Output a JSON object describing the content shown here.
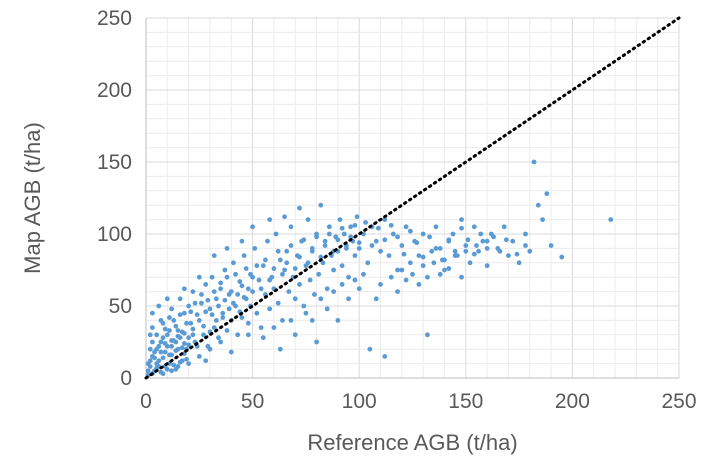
{
  "chart_data": {
    "type": "scatter",
    "title": "",
    "xlabel": "Reference AGB (t/ha)",
    "ylabel": "Map AGB (t/ha)",
    "xlim": [
      0,
      250
    ],
    "ylim": [
      0,
      250
    ],
    "x_ticks": [
      0,
      50,
      100,
      150,
      200,
      250
    ],
    "y_ticks": [
      0,
      50,
      100,
      150,
      200,
      250
    ],
    "x_tick_labels": [
      "0",
      "50",
      "100",
      "150",
      "200",
      "250"
    ],
    "y_tick_labels": [
      "0",
      "50",
      "100",
      "150",
      "200",
      "250"
    ],
    "grid": true,
    "legend": "none",
    "colors": {
      "points": "#5b9bd5",
      "reference_line": "#000000",
      "grid": "#d9d9d9",
      "text": "#595959"
    },
    "reference_line": {
      "style": "dotted",
      "from": [
        0,
        0
      ],
      "to": [
        250,
        250
      ]
    },
    "series": [
      {
        "points": [
          [
            1,
            2
          ],
          [
            2,
            8
          ],
          [
            3,
            15
          ],
          [
            4,
            5
          ],
          [
            5,
            20
          ],
          [
            6,
            12
          ],
          [
            7,
            25
          ],
          [
            8,
            3
          ],
          [
            9,
            18
          ],
          [
            10,
            30
          ],
          [
            11,
            10
          ],
          [
            12,
            22
          ],
          [
            13,
            40
          ],
          [
            14,
            6
          ],
          [
            15,
            33
          ],
          [
            16,
            28
          ],
          [
            17,
            12
          ],
          [
            18,
            45
          ],
          [
            19,
            20
          ],
          [
            20,
            50
          ],
          [
            2,
            30
          ],
          [
            3,
            35
          ],
          [
            5,
            10
          ],
          [
            7,
            40
          ],
          [
            9,
            8
          ],
          [
            11,
            33
          ],
          [
            12,
            48
          ],
          [
            14,
            25
          ],
          [
            16,
            55
          ],
          [
            18,
            17
          ],
          [
            21,
            38
          ],
          [
            22,
            60
          ],
          [
            23,
            25
          ],
          [
            24,
            44
          ],
          [
            25,
            15
          ],
          [
            26,
            52
          ],
          [
            27,
            30
          ],
          [
            28,
            65
          ],
          [
            29,
            22
          ],
          [
            30,
            48
          ],
          [
            31,
            70
          ],
          [
            32,
            35
          ],
          [
            33,
            55
          ],
          [
            34,
            28
          ],
          [
            35,
            62
          ],
          [
            36,
            45
          ],
          [
            37,
            75
          ],
          [
            38,
            33
          ],
          [
            39,
            58
          ],
          [
            40,
            40
          ],
          [
            41,
            80
          ],
          [
            42,
            50
          ],
          [
            43,
            30
          ],
          [
            44,
            67
          ],
          [
            45,
            42
          ],
          [
            46,
            85
          ],
          [
            47,
            55
          ],
          [
            48,
            38
          ],
          [
            49,
            72
          ],
          [
            50,
            60
          ],
          [
            51,
            90
          ],
          [
            52,
            45
          ],
          [
            53,
            68
          ],
          [
            54,
            35
          ],
          [
            55,
            78
          ],
          [
            56,
            58
          ],
          [
            57,
            95
          ],
          [
            58,
            48
          ],
          [
            59,
            70
          ],
          [
            60,
            62
          ],
          [
            61,
            100
          ],
          [
            62,
            52
          ],
          [
            63,
            82
          ],
          [
            64,
            40
          ],
          [
            65,
            75
          ],
          [
            66,
            88
          ],
          [
            67,
            60
          ],
          [
            68,
            105
          ],
          [
            69,
            70
          ],
          [
            70,
            55
          ],
          [
            71,
            85
          ],
          [
            72,
            65
          ],
          [
            73,
            95
          ],
          [
            74,
            50
          ],
          [
            75,
            78
          ],
          [
            76,
            110
          ],
          [
            77,
            68
          ],
          [
            78,
            90
          ],
          [
            79,
            58
          ],
          [
            80,
            100
          ],
          [
            81,
            72
          ],
          [
            82,
            120
          ],
          [
            83,
            80
          ],
          [
            84,
            95
          ],
          [
            85,
            62
          ],
          [
            86,
            105
          ],
          [
            87,
            85
          ],
          [
            88,
            75
          ],
          [
            89,
            98
          ],
          [
            90,
            88
          ],
          [
            91,
            110
          ],
          [
            92,
            78
          ],
          [
            93,
            100
          ],
          [
            94,
            92
          ],
          [
            95,
            70
          ],
          [
            96,
            105
          ],
          [
            97,
            95
          ],
          [
            98,
            85
          ],
          [
            99,
            112
          ],
          [
            100,
            90
          ],
          [
            102,
            100
          ],
          [
            104,
            80
          ],
          [
            106,
            105
          ],
          [
            108,
            95
          ],
          [
            110,
            88
          ],
          [
            112,
            110
          ],
          [
            114,
            85
          ],
          [
            116,
            100
          ],
          [
            118,
            75
          ],
          [
            120,
            92
          ],
          [
            122,
            105
          ],
          [
            124,
            80
          ],
          [
            126,
            95
          ],
          [
            128,
            85
          ],
          [
            130,
            100
          ],
          [
            132,
            70
          ],
          [
            134,
            88
          ],
          [
            136,
            105
          ],
          [
            138,
            90
          ],
          [
            140,
            75
          ],
          [
            142,
            95
          ],
          [
            144,
            100
          ],
          [
            146,
            85
          ],
          [
            148,
            110
          ],
          [
            150,
            92
          ],
          [
            152,
            80
          ],
          [
            154,
            105
          ],
          [
            156,
            88
          ],
          [
            158,
            95
          ],
          [
            160,
            78
          ],
          [
            162,
            100
          ],
          [
            165,
            90
          ],
          [
            168,
            105
          ],
          [
            170,
            85
          ],
          [
            172,
            95
          ],
          [
            175,
            80
          ],
          [
            178,
            100
          ],
          [
            180,
            88
          ],
          [
            182,
            150
          ],
          [
            184,
            120
          ],
          [
            186,
            110
          ],
          [
            188,
            128
          ],
          [
            190,
            92
          ],
          [
            195,
            84
          ],
          [
            218,
            110
          ],
          [
            3,
            45
          ],
          [
            6,
            50
          ],
          [
            8,
            38
          ],
          [
            10,
            55
          ],
          [
            12,
            5
          ],
          [
            15,
            8
          ],
          [
            18,
            62
          ],
          [
            20,
            10
          ],
          [
            22,
            30
          ],
          [
            25,
            70
          ],
          [
            28,
            12
          ],
          [
            30,
            20
          ],
          [
            32,
            85
          ],
          [
            35,
            25
          ],
          [
            38,
            90
          ],
          [
            40,
            18
          ],
          [
            45,
            95
          ],
          [
            48,
            30
          ],
          [
            50,
            105
          ],
          [
            55,
            28
          ],
          [
            58,
            110
          ],
          [
            60,
            35
          ],
          [
            63,
            20
          ],
          [
            65,
            112
          ],
          [
            68,
            40
          ],
          [
            70,
            30
          ],
          [
            72,
            118
          ],
          [
            75,
            45
          ],
          [
            78,
            40
          ],
          [
            80,
            25
          ],
          [
            82,
            55
          ],
          [
            85,
            48
          ],
          [
            88,
            60
          ],
          [
            90,
            40
          ],
          [
            92,
            65
          ],
          [
            95,
            55
          ],
          [
            98,
            68
          ],
          [
            100,
            62
          ],
          [
            102,
            72
          ],
          [
            105,
            20
          ],
          [
            108,
            55
          ],
          [
            110,
            65
          ],
          [
            112,
            15
          ],
          [
            115,
            70
          ],
          [
            118,
            60
          ],
          [
            120,
            75
          ],
          [
            122,
            68
          ],
          [
            125,
            72
          ],
          [
            128,
            65
          ],
          [
            130,
            78
          ],
          [
            132,
            30
          ],
          [
            135,
            80
          ],
          [
            138,
            72
          ],
          [
            140,
            82
          ],
          [
            142,
            76
          ],
          [
            145,
            85
          ],
          [
            148,
            70
          ],
          [
            150,
            88
          ],
          [
            155,
            92
          ],
          [
            160,
            95
          ],
          [
            1,
            10
          ],
          [
            2,
            20
          ],
          [
            3,
            25
          ],
          [
            4,
            14
          ],
          [
            5,
            30
          ],
          [
            6,
            8
          ],
          [
            7,
            18
          ],
          [
            8,
            28
          ],
          [
            9,
            34
          ],
          [
            10,
            22
          ],
          [
            11,
            42
          ],
          [
            12,
            16
          ],
          [
            13,
            26
          ],
          [
            14,
            36
          ],
          [
            15,
            20
          ],
          [
            16,
            44
          ],
          [
            17,
            32
          ],
          [
            18,
            24
          ],
          [
            19,
            38
          ],
          [
            20,
            28
          ],
          [
            21,
            46
          ],
          [
            22,
            34
          ],
          [
            23,
            52
          ],
          [
            24,
            22
          ],
          [
            25,
            40
          ],
          [
            26,
            58
          ],
          [
            27,
            36
          ],
          [
            28,
            46
          ],
          [
            29,
            54
          ],
          [
            30,
            32
          ],
          [
            31,
            44
          ],
          [
            32,
            60
          ],
          [
            33,
            40
          ],
          [
            34,
            50
          ],
          [
            35,
            66
          ],
          [
            36,
            42
          ],
          [
            37,
            54
          ],
          [
            38,
            70
          ],
          [
            39,
            48
          ],
          [
            40,
            60
          ],
          [
            41,
            52
          ],
          [
            42,
            72
          ],
          [
            43,
            58
          ],
          [
            44,
            46
          ],
          [
            45,
            64
          ],
          [
            46,
            56
          ],
          [
            47,
            76
          ],
          [
            48,
            62
          ],
          [
            49,
            50
          ],
          [
            50,
            70
          ],
          [
            52,
            78
          ],
          [
            54,
            62
          ],
          [
            56,
            82
          ],
          [
            58,
            68
          ],
          [
            60,
            76
          ],
          [
            62,
            88
          ],
          [
            64,
            72
          ],
          [
            66,
            80
          ],
          [
            68,
            92
          ],
          [
            70,
            76
          ],
          [
            72,
            84
          ],
          [
            74,
            96
          ],
          [
            76,
            80
          ],
          [
            78,
            88
          ],
          [
            80,
            98
          ],
          [
            82,
            84
          ],
          [
            84,
            92
          ],
          [
            86,
            100
          ],
          [
            88,
            88
          ],
          [
            90,
            96
          ],
          [
            92,
            104
          ],
          [
            94,
            90
          ],
          [
            96,
            98
          ],
          [
            98,
            106
          ],
          [
            100,
            94
          ],
          [
            103,
            108
          ],
          [
            106,
            92
          ],
          [
            109,
            104
          ],
          [
            112,
            96
          ],
          [
            115,
            106
          ],
          [
            118,
            98
          ],
          [
            121,
            86
          ],
          [
            124,
            102
          ],
          [
            127,
            94
          ],
          [
            130,
            84
          ],
          [
            133,
            98
          ],
          [
            136,
            90
          ],
          [
            139,
            82
          ],
          [
            142,
            96
          ],
          [
            145,
            88
          ],
          [
            148,
            104
          ],
          [
            151,
            96
          ],
          [
            154,
            86
          ],
          [
            157,
            100
          ],
          [
            160,
            90
          ],
          [
            163,
            98
          ],
          [
            166,
            88
          ],
          [
            169,
            96
          ],
          [
            174,
            86
          ],
          [
            178,
            92
          ],
          [
            1,
            5
          ],
          [
            2,
            12
          ],
          [
            3,
            3
          ],
          [
            4,
            18
          ],
          [
            5,
            7
          ],
          [
            6,
            22
          ],
          [
            7,
            4
          ],
          [
            8,
            14
          ],
          [
            9,
            24
          ],
          [
            10,
            6
          ],
          [
            11,
            16
          ],
          [
            12,
            26
          ],
          [
            13,
            9
          ],
          [
            14,
            19
          ],
          [
            15,
            29
          ],
          [
            16,
            11
          ],
          [
            17,
            21
          ],
          [
            18,
            31
          ],
          [
            19,
            13
          ],
          [
            20,
            23
          ]
        ]
      }
    ]
  }
}
